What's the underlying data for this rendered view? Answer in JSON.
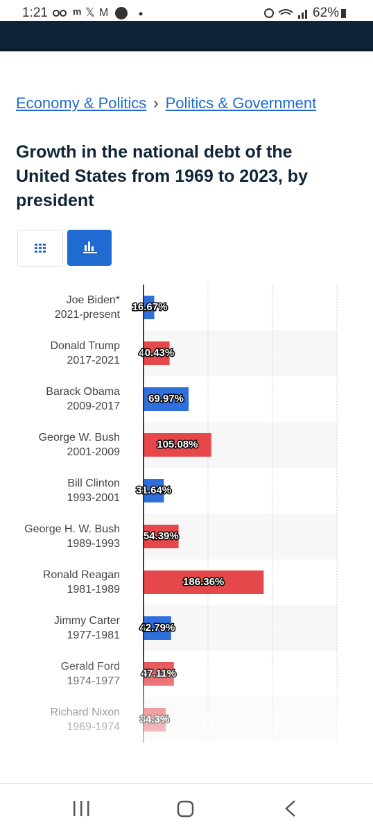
{
  "status_bar": {
    "time": "1:21",
    "battery": "62%"
  },
  "breadcrumb": {
    "items": [
      "Economy & Politics",
      "Politics & Government"
    ],
    "separator": "›"
  },
  "chart_data": {
    "type": "bar",
    "orientation": "horizontal",
    "title": "Growth in the national debt of the United States from 1969 to 2023, by president",
    "categories": [
      "Joe Biden*",
      "Donald Trump",
      "Barack Obama",
      "George W. Bush",
      "Bill Clinton",
      "George H. W. Bush",
      "Ronald Reagan",
      "Jimmy Carter",
      "Gerald Ford",
      "Richard Nixon"
    ],
    "periods": [
      "2021-present",
      "2017-2021",
      "2009-2017",
      "2001-2009",
      "1993-2001",
      "1989-1993",
      "1981-1989",
      "1977-1981",
      "1974-1977",
      "1969-1974"
    ],
    "values": [
      16.67,
      40.43,
      69.97,
      105.08,
      31.64,
      54.39,
      186.36,
      42.79,
      47.11,
      34.3
    ],
    "value_labels": [
      "16.67%",
      "40.43%",
      "69.97%",
      "105.08%",
      "31.64%",
      "54.39%",
      "186.36%",
      "42.79%",
      "47.11%",
      "34.3%"
    ],
    "colors": [
      "#2f6fdc",
      "#e5474b",
      "#2f6fdc",
      "#e5474b",
      "#2f6fdc",
      "#e5474b",
      "#e5474b",
      "#2f6fdc",
      "#e5474b",
      "#e5474b"
    ],
    "xlim": [
      0,
      300
    ],
    "xticks": [
      0,
      100,
      200,
      300
    ],
    "grid": true
  }
}
